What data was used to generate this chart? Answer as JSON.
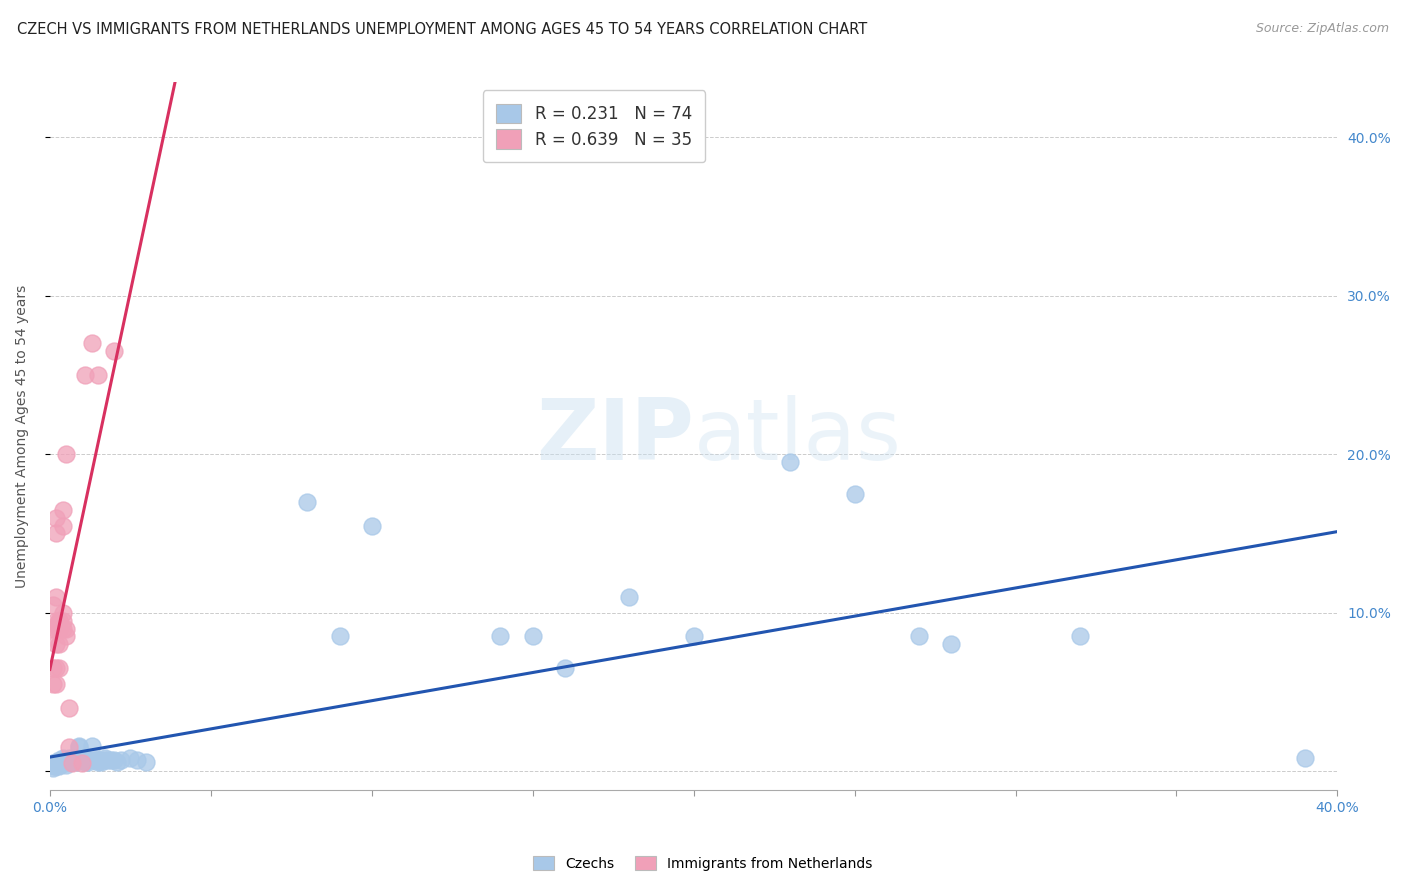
{
  "title": "CZECH VS IMMIGRANTS FROM NETHERLANDS UNEMPLOYMENT AMONG AGES 45 TO 54 YEARS CORRELATION CHART",
  "source": "Source: ZipAtlas.com",
  "ylabel": "Unemployment Among Ages 45 to 54 years",
  "xlim": [
    0.0,
    0.4
  ],
  "ylim": [
    -0.012,
    0.435
  ],
  "yticks": [
    0.0,
    0.1,
    0.2,
    0.3,
    0.4
  ],
  "ytick_labels": [
    "",
    "10.0%",
    "20.0%",
    "30.0%",
    "40.0%"
  ],
  "xticks": [
    0.0,
    0.05,
    0.1,
    0.15,
    0.2,
    0.25,
    0.3,
    0.35,
    0.4
  ],
  "color_czech": "#a8c8e8",
  "color_netherlands": "#f0a0b8",
  "color_line_czech": "#2255b0",
  "color_line_netherlands": "#d83060",
  "watermark": "ZIPatlas",
  "R_czech": 0.231,
  "N_czech": 74,
  "R_neth": 0.639,
  "N_neth": 35,
  "title_fontsize": 10.5,
  "source_fontsize": 9,
  "ylabel_fontsize": 10,
  "tick_fontsize": 10,
  "legend_fontsize": 12,
  "czech_data": [
    [
      0.001,
      0.005
    ],
    [
      0.001,
      0.004
    ],
    [
      0.001,
      0.003
    ],
    [
      0.001,
      0.002
    ],
    [
      0.002,
      0.006
    ],
    [
      0.002,
      0.005
    ],
    [
      0.002,
      0.005
    ],
    [
      0.002,
      0.004
    ],
    [
      0.002,
      0.003
    ],
    [
      0.002,
      0.003
    ],
    [
      0.003,
      0.007
    ],
    [
      0.003,
      0.006
    ],
    [
      0.003,
      0.005
    ],
    [
      0.003,
      0.005
    ],
    [
      0.003,
      0.004
    ],
    [
      0.003,
      0.003
    ],
    [
      0.004,
      0.008
    ],
    [
      0.004,
      0.007
    ],
    [
      0.004,
      0.006
    ],
    [
      0.004,
      0.006
    ],
    [
      0.004,
      0.005
    ],
    [
      0.005,
      0.007
    ],
    [
      0.005,
      0.006
    ],
    [
      0.005,
      0.006
    ],
    [
      0.005,
      0.005
    ],
    [
      0.005,
      0.004
    ],
    [
      0.006,
      0.008
    ],
    [
      0.006,
      0.007
    ],
    [
      0.006,
      0.006
    ],
    [
      0.006,
      0.006
    ],
    [
      0.007,
      0.008
    ],
    [
      0.007,
      0.007
    ],
    [
      0.007,
      0.007
    ],
    [
      0.007,
      0.006
    ],
    [
      0.008,
      0.008
    ],
    [
      0.008,
      0.006
    ],
    [
      0.009,
      0.016
    ],
    [
      0.009,
      0.015
    ],
    [
      0.01,
      0.007
    ],
    [
      0.01,
      0.007
    ],
    [
      0.011,
      0.007
    ],
    [
      0.011,
      0.006
    ],
    [
      0.012,
      0.007
    ],
    [
      0.012,
      0.006
    ],
    [
      0.013,
      0.016
    ],
    [
      0.014,
      0.007
    ],
    [
      0.015,
      0.007
    ],
    [
      0.015,
      0.006
    ],
    [
      0.016,
      0.007
    ],
    [
      0.016,
      0.006
    ],
    [
      0.017,
      0.008
    ],
    [
      0.017,
      0.007
    ],
    [
      0.018,
      0.007
    ],
    [
      0.019,
      0.007
    ],
    [
      0.02,
      0.007
    ],
    [
      0.021,
      0.006
    ],
    [
      0.022,
      0.007
    ],
    [
      0.025,
      0.008
    ],
    [
      0.027,
      0.007
    ],
    [
      0.03,
      0.006
    ],
    [
      0.08,
      0.17
    ],
    [
      0.09,
      0.085
    ],
    [
      0.1,
      0.155
    ],
    [
      0.14,
      0.085
    ],
    [
      0.15,
      0.085
    ],
    [
      0.16,
      0.065
    ],
    [
      0.18,
      0.11
    ],
    [
      0.2,
      0.085
    ],
    [
      0.23,
      0.195
    ],
    [
      0.25,
      0.175
    ],
    [
      0.27,
      0.085
    ],
    [
      0.28,
      0.08
    ],
    [
      0.32,
      0.085
    ],
    [
      0.39,
      0.008
    ]
  ],
  "netherlands_data": [
    [
      0.001,
      0.055
    ],
    [
      0.001,
      0.065
    ],
    [
      0.001,
      0.09
    ],
    [
      0.001,
      0.105
    ],
    [
      0.002,
      0.055
    ],
    [
      0.002,
      0.065
    ],
    [
      0.002,
      0.08
    ],
    [
      0.002,
      0.09
    ],
    [
      0.002,
      0.095
    ],
    [
      0.002,
      0.11
    ],
    [
      0.002,
      0.15
    ],
    [
      0.002,
      0.16
    ],
    [
      0.003,
      0.065
    ],
    [
      0.003,
      0.08
    ],
    [
      0.003,
      0.09
    ],
    [
      0.003,
      0.09
    ],
    [
      0.003,
      0.095
    ],
    [
      0.003,
      0.095
    ],
    [
      0.003,
      0.095
    ],
    [
      0.004,
      0.09
    ],
    [
      0.004,
      0.095
    ],
    [
      0.004,
      0.1
    ],
    [
      0.004,
      0.155
    ],
    [
      0.004,
      0.165
    ],
    [
      0.005,
      0.09
    ],
    [
      0.005,
      0.085
    ],
    [
      0.005,
      0.2
    ],
    [
      0.006,
      0.015
    ],
    [
      0.006,
      0.04
    ],
    [
      0.007,
      0.005
    ],
    [
      0.01,
      0.005
    ],
    [
      0.011,
      0.25
    ],
    [
      0.013,
      0.27
    ],
    [
      0.015,
      0.25
    ],
    [
      0.02,
      0.265
    ]
  ]
}
